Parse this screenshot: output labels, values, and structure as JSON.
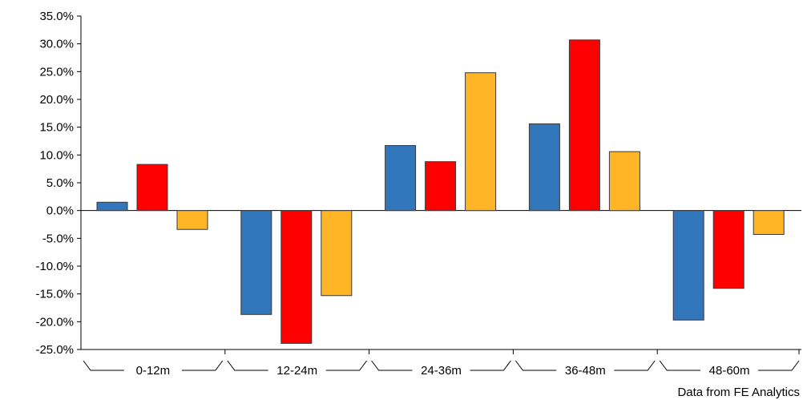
{
  "chart_data": {
    "type": "bar",
    "categories": [
      "0-12m",
      "12-24m",
      "24-36m",
      "36-48m",
      "48-60m"
    ],
    "series": [
      {
        "values": [
          1.5,
          -18.7,
          11.7,
          15.6,
          -19.7
        ],
        "color": "#3176bb"
      },
      {
        "values": [
          8.3,
          -23.9,
          8.8,
          30.7,
          -14.0
        ],
        "color": "#ff0000"
      },
      {
        "values": [
          -3.4,
          -15.3,
          24.8,
          10.6,
          -4.3
        ],
        "color": "#ffb526"
      }
    ],
    "y_ticks": [
      "35.0%",
      "30.0%",
      "25.0%",
      "20.0%",
      "15.0%",
      "10.0%",
      "5.0%",
      "0.0%",
      "-5.0%",
      "-10.0%",
      "-15.0%",
      "-20.0%",
      "-25.0%"
    ],
    "ylim": [
      -25,
      35
    ],
    "grid": false,
    "legend": "none",
    "source_note": "Data from FE Analytics"
  }
}
